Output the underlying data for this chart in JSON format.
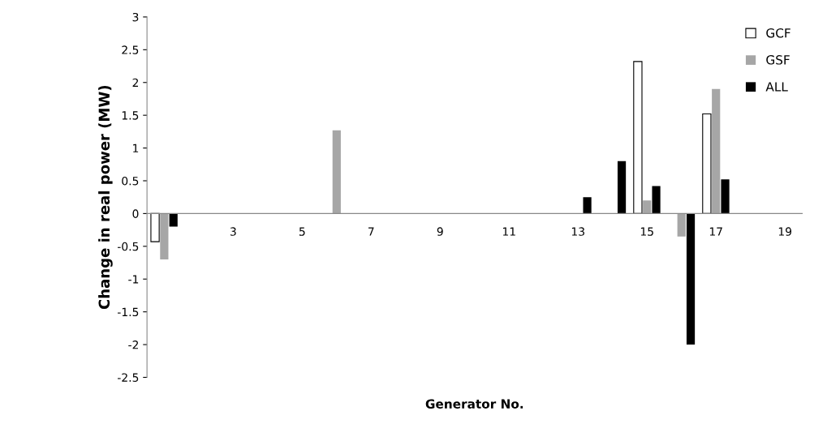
{
  "chart_data": {
    "type": "bar",
    "xlabel": "Generator No.",
    "ylabel": "Change in real power (MW)",
    "categories": [
      null,
      null,
      "3",
      null,
      "5",
      null,
      "7",
      null,
      "9",
      null,
      "11",
      null,
      "13",
      null,
      "15",
      null,
      "17",
      null,
      "19"
    ],
    "series": [
      {
        "name": "GCF",
        "color": "#ffffff",
        "values": [
          -0.43,
          null,
          null,
          null,
          null,
          null,
          null,
          null,
          null,
          null,
          null,
          null,
          null,
          null,
          2.32,
          null,
          1.52,
          null,
          null
        ]
      },
      {
        "name": "GSF",
        "color": "#a6a6a6",
        "values": [
          -0.7,
          null,
          null,
          null,
          null,
          1.27,
          null,
          null,
          null,
          null,
          null,
          null,
          null,
          null,
          0.2,
          -0.35,
          1.9,
          null,
          null
        ]
      },
      {
        "name": "ALL",
        "color": "#000000",
        "values": [
          -0.2,
          null,
          null,
          null,
          null,
          null,
          null,
          null,
          null,
          null,
          null,
          null,
          0.25,
          0.8,
          0.42,
          -2.0,
          0.52,
          null,
          null
        ]
      }
    ],
    "ylim": [
      -2.5,
      3
    ],
    "yticks": [
      -2.5,
      -2,
      -1.5,
      -1,
      -0.5,
      0,
      0.5,
      1,
      1.5,
      2,
      2.5,
      3
    ],
    "legend": "top right"
  }
}
